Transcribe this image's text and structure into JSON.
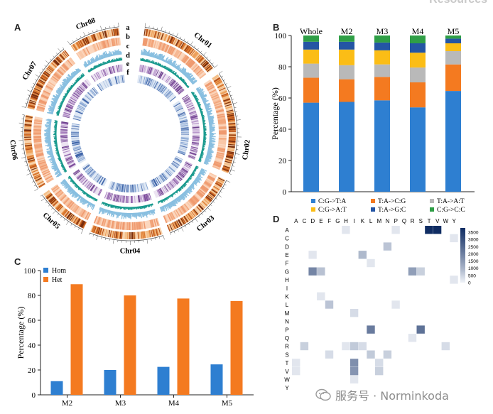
{
  "header_fragment": "Resources",
  "watermark": "服务号 · Norminkoda",
  "panels": {
    "a": "A",
    "b": "B",
    "c": "C",
    "d": "D"
  },
  "chart_data": [
    {
      "panel": "A",
      "type": "circos",
      "chromosomes": [
        "Chr01",
        "Chr02",
        "Chr03",
        "Chr04",
        "Chr05",
        "Chr06",
        "Chr07",
        "Chr08"
      ],
      "tracks": [
        "a",
        "b",
        "c",
        "d",
        "e",
        "f"
      ]
    },
    {
      "panel": "B",
      "type": "bar",
      "stacked": true,
      "categories": [
        "Whole",
        "M2",
        "M3",
        "M4",
        "M5"
      ],
      "ylabel": "Percentage (%)",
      "ylim": [
        0,
        100
      ],
      "yticks": [
        0,
        20,
        40,
        60,
        80,
        100
      ],
      "series": [
        {
          "name": "C:G->T:A",
          "color": "#2e7fd1",
          "values": [
            57,
            57.5,
            58.5,
            54,
            64.5
          ]
        },
        {
          "name": "T:A->C:G",
          "color": "#f47a20",
          "values": [
            16,
            14.5,
            15,
            16,
            17
          ]
        },
        {
          "name": "T:A->A:T",
          "color": "#b9b9b9",
          "values": [
            9,
            9,
            8,
            9.5,
            8.5
          ]
        },
        {
          "name": "C:G->A:T",
          "color": "#fbbd16",
          "values": [
            9,
            10,
            9,
            9.5,
            5
          ]
        },
        {
          "name": "T:A->G:C",
          "color": "#2455a4",
          "values": [
            5,
            5,
            5,
            6,
            3
          ]
        },
        {
          "name": "C:G->C:C",
          "color": "#2f9e46",
          "values": [
            4,
            4,
            4.5,
            5,
            2
          ]
        }
      ],
      "legend_order": [
        "C:G->T:A",
        "T:A->C:G",
        "T:A->A:T",
        "C:G->A:T",
        "T:A->G:C",
        "C:G->C:C"
      ]
    },
    {
      "panel": "C",
      "type": "bar",
      "categories": [
        "M2",
        "M3",
        "M4",
        "M5"
      ],
      "ylabel": "Percentage (%)",
      "ylim": [
        0,
        100
      ],
      "yticks": [
        0,
        20,
        40,
        60,
        80,
        100
      ],
      "series": [
        {
          "name": "Hom",
          "color": "#2e7fd1",
          "values": [
            11,
            20,
            22.5,
            24.5
          ]
        },
        {
          "name": "Het",
          "color": "#f47a20",
          "values": [
            89,
            80,
            77.5,
            75.5
          ]
        }
      ]
    },
    {
      "panel": "D",
      "type": "heatmap",
      "x_labels": [
        "A",
        "C",
        "D",
        "E",
        "F",
        "G",
        "H",
        "I",
        "K",
        "L",
        "M",
        "N",
        "P",
        "Q",
        "R",
        "S",
        "T",
        "V",
        "W",
        "Y"
      ],
      "y_labels": [
        "A",
        "C",
        "D",
        "E",
        "F",
        "G",
        "H",
        "I",
        "K",
        "L",
        "M",
        "N",
        "P",
        "Q",
        "R",
        "S",
        "T",
        "V",
        "W",
        "Y"
      ],
      "colorbar_ticks": [
        3500,
        3000,
        2500,
        2000,
        1500,
        1000,
        500,
        0
      ],
      "vmax": 3800,
      "cells": [
        {
          "row": "A",
          "col": "H",
          "value": 150
        },
        {
          "row": "A",
          "col": "P",
          "value": 150
        },
        {
          "row": "A",
          "col": "T",
          "value": 3800
        },
        {
          "row": "A",
          "col": "V",
          "value": 3800
        },
        {
          "row": "C",
          "col": "Y",
          "value": 150
        },
        {
          "row": "D",
          "col": "N",
          "value": 700
        },
        {
          "row": "E",
          "col": "D",
          "value": 150
        },
        {
          "row": "E",
          "col": "K",
          "value": 900
        },
        {
          "row": "F",
          "col": "L",
          "value": 150
        },
        {
          "row": "G",
          "col": "D",
          "value": 1900
        },
        {
          "row": "G",
          "col": "E",
          "value": 750
        },
        {
          "row": "G",
          "col": "R",
          "value": 1400
        },
        {
          "row": "G",
          "col": "S",
          "value": 500
        },
        {
          "row": "H",
          "col": "Y",
          "value": 150
        },
        {
          "row": "K",
          "col": "E",
          "value": 150
        },
        {
          "row": "L",
          "col": "F",
          "value": 700
        },
        {
          "row": "L",
          "col": "P",
          "value": 150
        },
        {
          "row": "M",
          "col": "I",
          "value": 300
        },
        {
          "row": "P",
          "col": "L",
          "value": 2100
        },
        {
          "row": "P",
          "col": "S",
          "value": 2300
        },
        {
          "row": "Q",
          "col": "R",
          "value": 150
        },
        {
          "row": "R",
          "col": "C",
          "value": 500
        },
        {
          "row": "R",
          "col": "H",
          "value": 150
        },
        {
          "row": "R",
          "col": "I",
          "value": 600
        },
        {
          "row": "R",
          "col": "K",
          "value": 300
        },
        {
          "row": "R",
          "col": "W",
          "value": 300
        },
        {
          "row": "S",
          "col": "F",
          "value": 300
        },
        {
          "row": "S",
          "col": "L",
          "value": 600
        },
        {
          "row": "S",
          "col": "N",
          "value": 500
        },
        {
          "row": "T",
          "col": "A",
          "value": 150
        },
        {
          "row": "T",
          "col": "I",
          "value": 1700
        },
        {
          "row": "T",
          "col": "M",
          "value": 300
        },
        {
          "row": "V",
          "col": "A",
          "value": 150
        },
        {
          "row": "V",
          "col": "I",
          "value": 1600
        },
        {
          "row": "V",
          "col": "M",
          "value": 500
        },
        {
          "row": "W",
          "col": "I",
          "value": 150
        }
      ]
    }
  ]
}
